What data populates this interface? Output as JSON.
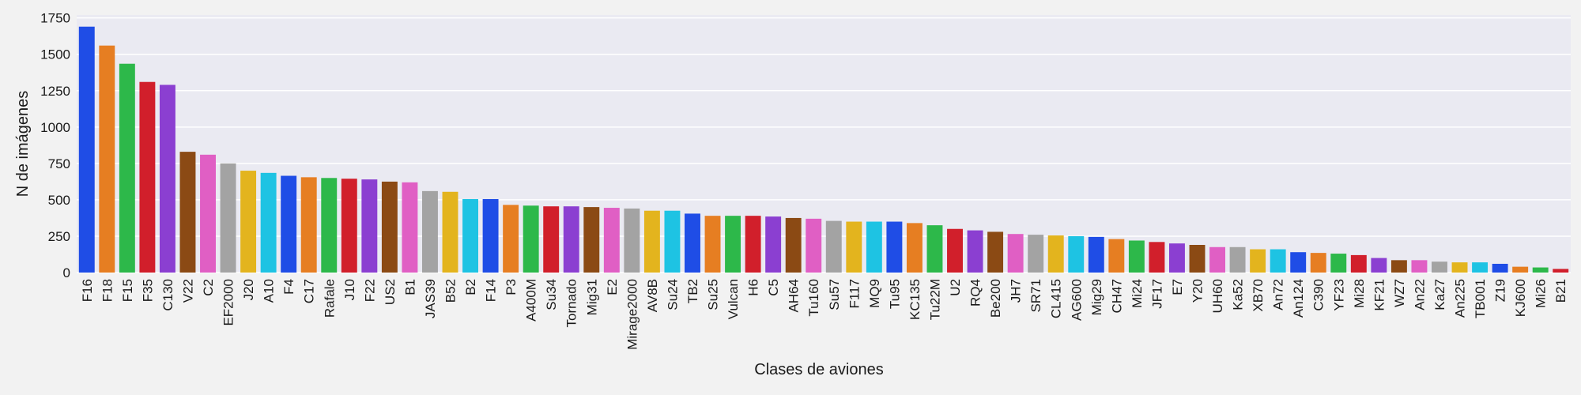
{
  "chart_data": {
    "type": "bar",
    "xlabel": "Clases de aviones",
    "ylabel": "N de imágenes",
    "ylim": [
      0,
      1770
    ],
    "yticks": [
      0,
      250,
      500,
      750,
      1000,
      1250,
      1500,
      1750
    ],
    "grid": true,
    "colors": [
      "#1f4de6",
      "#e67e22",
      "#2db84a",
      "#d11f2b",
      "#8b3fd1",
      "#8b4a14",
      "#e05fc4",
      "#a3a3a3",
      "#e3b41e",
      "#1ec3e3"
    ],
    "categories": [
      "F16",
      "F18",
      "F15",
      "F35",
      "C130",
      "V22",
      "C2",
      "EF2000",
      "J20",
      "A10",
      "F4",
      "C17",
      "Rafale",
      "J10",
      "F22",
      "US2",
      "B1",
      "JAS39",
      "B52",
      "B2",
      "F14",
      "P3",
      "A400M",
      "Su34",
      "Tornado",
      "Mig31",
      "E2",
      "Mirage2000",
      "AV8B",
      "Su24",
      "TB2",
      "Su25",
      "Vulcan",
      "H6",
      "C5",
      "AH64",
      "Tu160",
      "Su57",
      "F117",
      "MQ9",
      "Tu95",
      "KC135",
      "Tu22M",
      "U2",
      "RQ4",
      "Be200",
      "JH7",
      "SR71",
      "CL415",
      "AG600",
      "Mig29",
      "CH47",
      "Mi24",
      "JF17",
      "E7",
      "Y20",
      "UH60",
      "Ka52",
      "XB70",
      "An72",
      "An124",
      "C390",
      "YF23",
      "Mi28",
      "KF21",
      "WZ7",
      "An22",
      "Ka27",
      "An225",
      "TB001",
      "Z19",
      "KJ600",
      "Mi26",
      "B21"
    ],
    "values": [
      1690,
      1560,
      1435,
      1310,
      1290,
      830,
      810,
      750,
      700,
      685,
      665,
      655,
      650,
      645,
      640,
      625,
      620,
      560,
      555,
      505,
      505,
      465,
      460,
      455,
      455,
      450,
      445,
      440,
      425,
      425,
      405,
      390,
      390,
      390,
      385,
      375,
      370,
      355,
      350,
      350,
      350,
      340,
      325,
      300,
      290,
      280,
      265,
      260,
      255,
      250,
      245,
      230,
      220,
      210,
      200,
      190,
      175,
      175,
      160,
      160,
      140,
      135,
      130,
      120,
      100,
      85,
      85,
      75,
      70,
      70,
      60,
      40,
      35,
      25
    ]
  }
}
